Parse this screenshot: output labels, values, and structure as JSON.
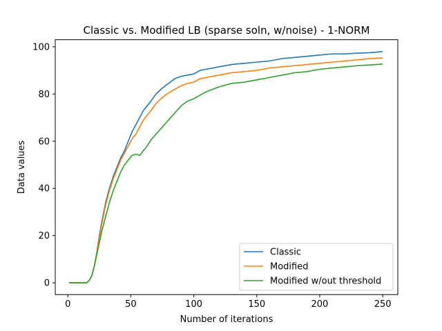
{
  "chart_data": {
    "type": "line",
    "title": "Classic vs. Modified LB (sparse soln, w/noise) - 1-NORM",
    "xlabel": "Number of iterations",
    "ylabel": "Data values",
    "xlim": [
      -10,
      262
    ],
    "ylim": [
      -5,
      103
    ],
    "xticks": [
      0,
      50,
      100,
      150,
      200,
      250
    ],
    "yticks": [
      0,
      20,
      40,
      60,
      80,
      100
    ],
    "grid": false,
    "legend_position": "lower-right",
    "series": [
      {
        "name": "Classic",
        "color": "#1f77b4",
        "x": [
          1,
          15,
          17,
          19,
          21,
          23,
          25,
          27,
          30,
          33,
          36,
          39,
          42,
          45,
          48,
          51,
          54,
          57,
          60,
          63,
          66,
          70,
          75,
          80,
          85,
          90,
          95,
          100,
          105,
          110,
          120,
          130,
          140,
          150,
          160,
          170,
          180,
          190,
          200,
          210,
          220,
          230,
          240,
          250
        ],
        "y": [
          0,
          0,
          1,
          3,
          7,
          13,
          20,
          26,
          34,
          40,
          45,
          49,
          53,
          56,
          60,
          64,
          67,
          70,
          73,
          75,
          77,
          80,
          82.5,
          84.5,
          86.5,
          87.5,
          88,
          88.5,
          90,
          90.5,
          91.5,
          92.5,
          93,
          93.5,
          94,
          95,
          95.5,
          96,
          96.5,
          97,
          97,
          97.3,
          97.5,
          98
        ]
      },
      {
        "name": "Modified",
        "color": "#ff7f0e",
        "x": [
          1,
          15,
          17,
          19,
          21,
          23,
          25,
          27,
          30,
          33,
          36,
          39,
          42,
          45,
          48,
          51,
          54,
          57,
          60,
          63,
          66,
          70,
          75,
          80,
          85,
          90,
          95,
          100,
          105,
          110,
          120,
          130,
          140,
          150,
          160,
          170,
          180,
          190,
          200,
          210,
          220,
          230,
          240,
          250
        ],
        "y": [
          0,
          0,
          1,
          3,
          7,
          13,
          19,
          25,
          33,
          39,
          44,
          48,
          52,
          55,
          58,
          61,
          63,
          66,
          69,
          71,
          73,
          76,
          78.5,
          80.5,
          82,
          83.5,
          84.5,
          85,
          86.5,
          87,
          88,
          89,
          89.5,
          90,
          91,
          91.5,
          92,
          92.5,
          93,
          93.5,
          94,
          94.5,
          95,
          95.3
        ]
      },
      {
        "name": "Modified w/out threshold",
        "color": "#2ca02c",
        "x": [
          1,
          15,
          17,
          19,
          21,
          23,
          25,
          27,
          30,
          33,
          36,
          39,
          42,
          45,
          48,
          51,
          54,
          57,
          60,
          63,
          66,
          70,
          75,
          80,
          85,
          90,
          95,
          100,
          105,
          110,
          120,
          130,
          140,
          150,
          160,
          170,
          180,
          190,
          200,
          210,
          220,
          230,
          240,
          250
        ],
        "y": [
          0,
          0,
          1,
          3,
          7,
          12,
          17,
          22,
          28,
          34,
          39,
          43,
          47,
          50,
          52,
          54,
          54.5,
          54,
          56,
          58,
          60.5,
          63,
          66,
          69,
          72,
          75,
          77,
          78,
          79.5,
          81,
          83,
          84.5,
          85,
          86,
          87,
          88,
          89,
          89.5,
          90.5,
          91,
          91.5,
          92,
          92.3,
          92.7
        ]
      }
    ]
  }
}
